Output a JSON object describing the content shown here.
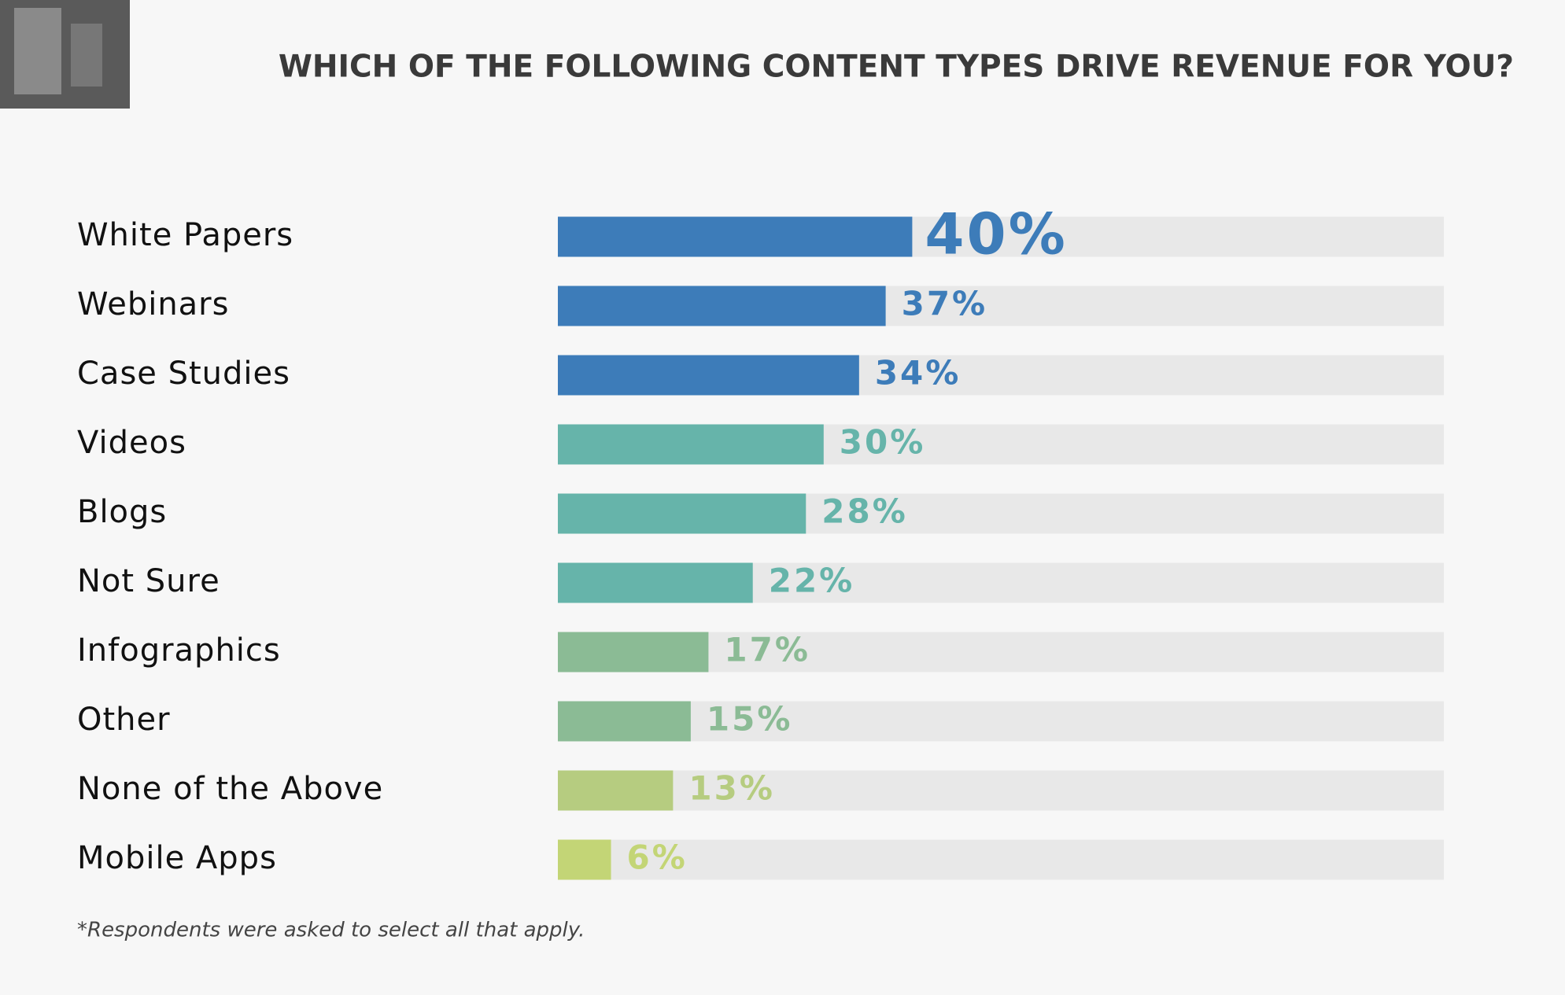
{
  "chart_data": {
    "type": "bar",
    "orientation": "horizontal",
    "title": "WHICH OF THE FOLLOWING CONTENT TYPES DRIVE REVENUE FOR YOU?",
    "categories": [
      "White Papers",
      "Webinars",
      "Case Studies",
      "Videos",
      "Blogs",
      "Not Sure",
      "Infographics",
      "Other",
      "None of the Above",
      "Mobile Apps"
    ],
    "values": [
      40,
      37,
      34,
      30,
      28,
      22,
      17,
      15,
      13,
      6
    ],
    "value_labels": [
      "40%",
      "37%",
      "34%",
      "30%",
      "28%",
      "22%",
      "17%",
      "15%",
      "13%",
      "6%"
    ],
    "colors": [
      "#3d7cb9",
      "#3d7cb9",
      "#3d7cb9",
      "#66b4aa",
      "#66b4aa",
      "#66b4aa",
      "#8bbb95",
      "#8bbb95",
      "#b6cc80",
      "#c3d576"
    ],
    "track_color": "#e8e8e8",
    "xlim": [
      0,
      100
    ],
    "note": "*Respondents were asked to select all that apply."
  }
}
